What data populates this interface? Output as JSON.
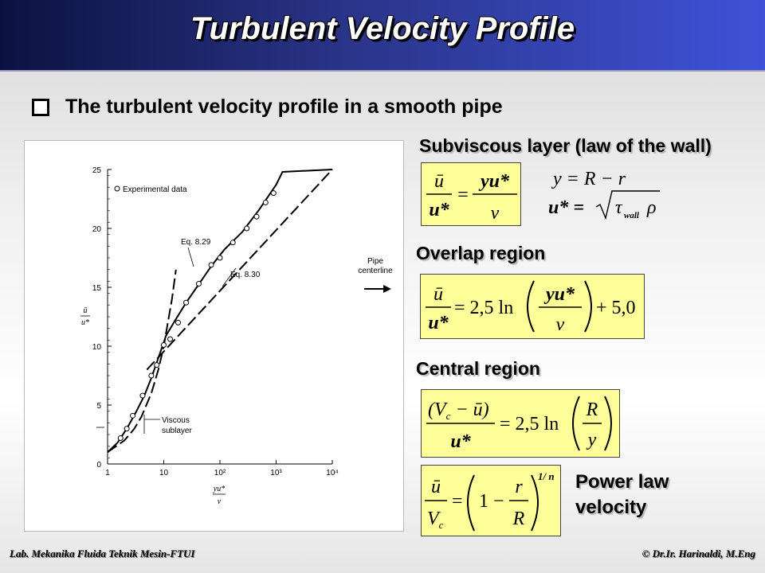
{
  "slide": {
    "title": "Turbulent Velocity Profile",
    "bullet": "The turbulent velocity profile in a smooth pipe"
  },
  "chart_data": {
    "type": "line",
    "x_scale": "log",
    "xlim": [
      1,
      10000
    ],
    "ylim": [
      0,
      25
    ],
    "x_ticks": [
      "1",
      "10",
      "10²",
      "10³",
      "10⁴"
    ],
    "y_ticks": [
      "0",
      "5",
      "10",
      "15",
      "20",
      "25"
    ],
    "xlabel_top": "yu*",
    "xlabel_bottom": "ν",
    "ylabel_top": "ū",
    "ylabel_bottom": "u*",
    "legend": "Experimental data",
    "annotations": {
      "eq829": "Eq. 8.29",
      "eq830": "Eq. 8.30",
      "pipe": "Pipe",
      "centerline": "centerline",
      "viscous": "Viscous",
      "sublayer": "sublayer"
    },
    "series": [
      {
        "name": "Experimental data",
        "points": [
          [
            1.7,
            2.2
          ],
          [
            2.2,
            3.0
          ],
          [
            2.8,
            4.1
          ],
          [
            4.2,
            5.8
          ],
          [
            6.0,
            7.5
          ],
          [
            7.5,
            8.4
          ],
          [
            10,
            10.1
          ],
          [
            13,
            10.6
          ],
          [
            18,
            12.0
          ],
          [
            25,
            13.7
          ],
          [
            42,
            15.3
          ],
          [
            70,
            16.9
          ],
          [
            100,
            17.5
          ],
          [
            170,
            18.8
          ],
          [
            300,
            20.0
          ],
          [
            450,
            21.0
          ],
          [
            650,
            22.2
          ],
          [
            900,
            23.0
          ]
        ]
      },
      {
        "name": "Eq. 8.29",
        "points": [
          [
            1,
            1
          ],
          [
            2,
            2
          ],
          [
            3,
            3
          ],
          [
            4,
            4
          ],
          [
            6,
            6
          ],
          [
            8,
            8
          ],
          [
            10,
            10
          ],
          [
            14,
            14
          ],
          [
            16.5,
            16.5
          ]
        ]
      },
      {
        "name": "Eq. 8.30",
        "points": [
          [
            5,
            8.0
          ],
          [
            10000,
            25.0
          ]
        ]
      },
      {
        "name": "fitted profile",
        "points": [
          [
            1,
            1.0
          ],
          [
            1.5,
            1.8
          ],
          [
            2.2,
            3.0
          ],
          [
            3.2,
            4.4
          ],
          [
            4.5,
            5.8
          ],
          [
            6,
            7.3
          ],
          [
            8,
            9.0
          ],
          [
            11,
            10.9
          ],
          [
            16,
            12.2
          ],
          [
            25,
            13.7
          ],
          [
            40,
            15.1
          ],
          [
            70,
            16.8
          ],
          [
            120,
            18.2
          ],
          [
            250,
            19.7
          ],
          [
            500,
            21.6
          ],
          [
            1000,
            23.7
          ],
          [
            1300,
            24.8
          ],
          [
            10000,
            25.0
          ]
        ]
      }
    ]
  },
  "sections": {
    "subviscous": "Subviscous layer (law of the wall)",
    "overlap": "Overlap region",
    "central": "Central region",
    "powerlaw_line1": "Power law",
    "powerlaw_line2": "velocity"
  },
  "equations": {
    "wall": {
      "lhs_num": "ū",
      "lhs_den": "u*",
      "rhs_num": "yu*",
      "rhs_den": "ν"
    },
    "y_def": "y = R − r",
    "ustar_lhs": "u* =",
    "ustar_tau": "τ",
    "ustar_sub": "wall",
    "ustar_rho": "ρ",
    "overlap": {
      "coef": "= 2,5 ln",
      "num": "yu*",
      "den": "ν",
      "const": "+ 5,0"
    },
    "central": {
      "num": "(V",
      "num_sub": "c",
      "num_rest": " − ū)",
      "den": "u*",
      "coef": "= 2,5 ln",
      "r_num": "R",
      "r_den": "y"
    },
    "power": {
      "lhs_num": "ū",
      "lhs_den": "V",
      "lhs_den_sub": "c",
      "eq": "=",
      "one": "1 −",
      "r_num": "r",
      "r_den": "R",
      "exp": "1/ n"
    }
  },
  "footer": {
    "left": "Lab. Mekanika Fluida Teknik Mesin-FTUI",
    "right": "© Dr.Ir. Harinaldi, M.Eng"
  }
}
